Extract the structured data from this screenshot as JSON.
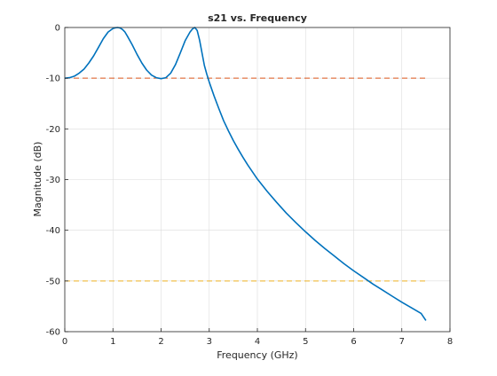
{
  "chart_data": {
    "type": "line",
    "title": "s21 vs. Frequency",
    "xlabel": "Frequency (GHz)",
    "ylabel": "Magnitude (dB)",
    "xlim": [
      0,
      8
    ],
    "ylim": [
      -60,
      0
    ],
    "xticks": [
      0,
      1,
      2,
      3,
      4,
      5,
      6,
      7,
      8
    ],
    "xtick_labels": [
      "0",
      "1",
      "2",
      "3",
      "4",
      "5",
      "6",
      "7",
      "8"
    ],
    "yticks": [
      0,
      -10,
      -20,
      -30,
      -40,
      -50,
      -60
    ],
    "ytick_labels": [
      "0",
      "-10",
      "-20",
      "-30",
      "-40",
      "-50",
      "-60"
    ],
    "grid": true,
    "colors": {
      "series": "#0072bd",
      "ref_minus10": "#d95319",
      "ref_minus50": "#edb120",
      "grid": "#dcdcdc",
      "axes": "#262626"
    },
    "series": [
      {
        "x": [
          0.0,
          0.1,
          0.2,
          0.3,
          0.4,
          0.5,
          0.6,
          0.7,
          0.8,
          0.9,
          1.0,
          1.05,
          1.1,
          1.15,
          1.2,
          1.25,
          1.3,
          1.4,
          1.5,
          1.6,
          1.7,
          1.8,
          1.9,
          2.0,
          2.1,
          2.2,
          2.3,
          2.4,
          2.5,
          2.6,
          2.65,
          2.7,
          2.75,
          2.8,
          2.85,
          2.9,
          2.95,
          3.0,
          3.1,
          3.2,
          3.3,
          3.4,
          3.5,
          3.6,
          3.7,
          3.8,
          4.0,
          4.2,
          4.4,
          4.6,
          4.8,
          5.0,
          5.2,
          5.4,
          5.6,
          5.8,
          6.0,
          6.2,
          6.4,
          6.6,
          6.8,
          7.0,
          7.2,
          7.4,
          7.5
        ],
        "y": [
          -10.0,
          -9.9,
          -9.6,
          -9.0,
          -8.2,
          -7.0,
          -5.6,
          -3.9,
          -2.2,
          -0.9,
          -0.2,
          -0.05,
          0.0,
          -0.1,
          -0.4,
          -0.9,
          -1.7,
          -3.4,
          -5.3,
          -7.0,
          -8.4,
          -9.4,
          -9.9,
          -10.1,
          -9.9,
          -9.0,
          -7.3,
          -5.0,
          -2.6,
          -0.9,
          -0.3,
          0.0,
          -0.6,
          -2.5,
          -5.0,
          -7.5,
          -9.2,
          -10.8,
          -13.5,
          -16.0,
          -18.4,
          -20.4,
          -22.3,
          -24.0,
          -25.6,
          -27.1,
          -29.9,
          -32.3,
          -34.5,
          -36.6,
          -38.5,
          -40.3,
          -42.0,
          -43.6,
          -45.1,
          -46.6,
          -48.0,
          -49.3,
          -50.6,
          -51.8,
          -53.0,
          -54.2,
          -55.3,
          -56.4,
          -57.8
        ]
      }
    ],
    "reference_lines": [
      {
        "y": -10,
        "style": "dashed",
        "x_range": [
          0,
          7.5
        ]
      },
      {
        "y": -50,
        "style": "dashed",
        "x_range": [
          0,
          7.5
        ]
      }
    ]
  }
}
